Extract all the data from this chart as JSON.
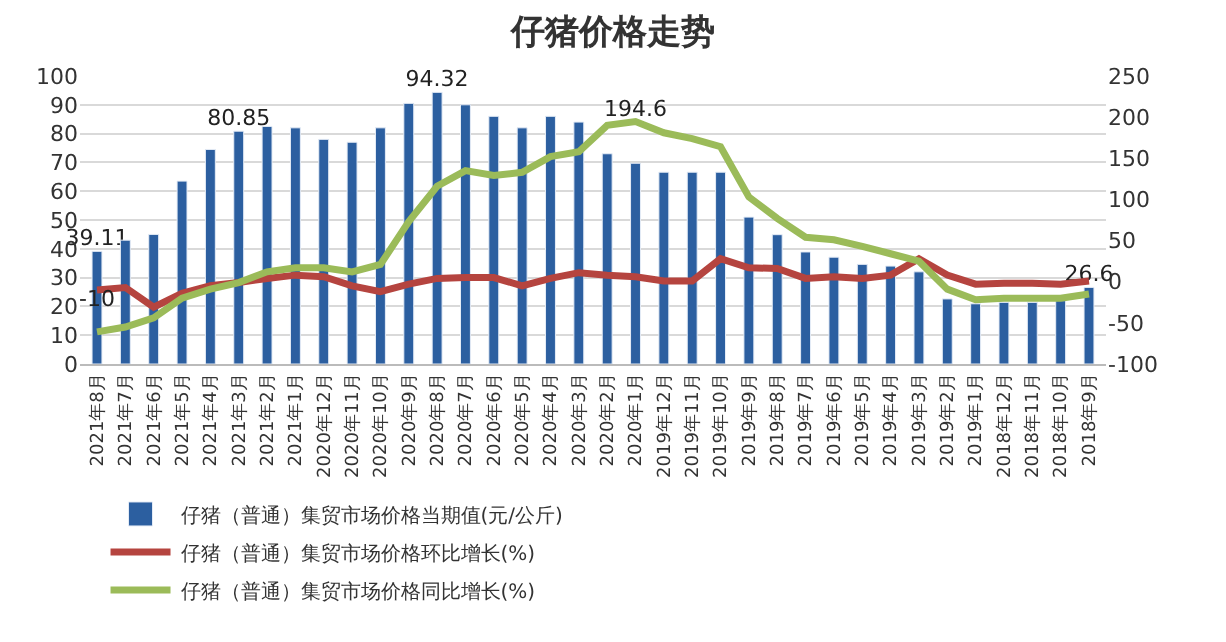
{
  "chart_data": {
    "type": "bar",
    "title": "仔猪价格走势",
    "categories": [
      "2021年8月",
      "2021年7月",
      "2021年6月",
      "2021年5月",
      "2021年4月",
      "2021年3月",
      "2021年2月",
      "2021年1月",
      "2020年12月",
      "2020年11月",
      "2020年10月",
      "2020年9月",
      "2020年8月",
      "2020年7月",
      "2020年6月",
      "2020年5月",
      "2020年4月",
      "2020年3月",
      "2020年2月",
      "2020年1月",
      "2019年12月",
      "2019年11月",
      "2019年10月",
      "2019年9月",
      "2019年8月",
      "2019年7月",
      "2019年6月",
      "2019年5月",
      "2019年4月",
      "2019年3月",
      "2019年2月",
      "2019年1月",
      "2018年12月",
      "2018年11月",
      "2018年10月",
      "2018年9月"
    ],
    "series": [
      {
        "name": "仔猪（普通）集贸市场价格当期值(元/公斤)",
        "color": "#2c5fa0",
        "values": [
          39.11,
          43,
          45,
          63.5,
          74.5,
          80.85,
          82.5,
          82,
          78,
          77,
          82,
          90.5,
          94.32,
          90,
          86,
          82,
          86,
          84,
          73,
          69.7,
          66.6,
          66.6,
          66.6,
          51,
          44.9,
          38.9,
          37.1,
          34.6,
          34,
          32,
          22.6,
          20.9,
          21.4,
          21.4,
          22,
          26.6
        ],
        "value_labels": [
          "39.11",
          null,
          null,
          null,
          null,
          "80.85",
          null,
          null,
          null,
          null,
          null,
          null,
          "94.32",
          null,
          null,
          null,
          null,
          null,
          null,
          null,
          null,
          null,
          null,
          null,
          null,
          null,
          null,
          null,
          null,
          null,
          null,
          null,
          null,
          null,
          null,
          "26.6"
        ]
      },
      {
        "name": "仔猪（普通）集贸市场价格环比增长(%)",
        "type": "line",
        "axis": "y2",
        "color": "#b5443f",
        "values": [
          -10,
          -7,
          -31,
          -14,
          -5,
          -1,
          4,
          8,
          6,
          -5,
          -12,
          -3,
          4,
          5,
          5,
          -5,
          4,
          11,
          8,
          6,
          1,
          1,
          28,
          17,
          16,
          4,
          6,
          4,
          8,
          28,
          8,
          -3,
          -2,
          -2,
          -3,
          1
        ],
        "value_labels": [
          "-10",
          null,
          null,
          null,
          null,
          null,
          null,
          null,
          null,
          null,
          null,
          null,
          null,
          null,
          null,
          null,
          null,
          null,
          null,
          null,
          null,
          null,
          null,
          null,
          null,
          null,
          null,
          null,
          null,
          null,
          null,
          null,
          null,
          null,
          null,
          null
        ]
      },
      {
        "name": "仔猪（普通）集贸市场价格同比增长(%)",
        "type": "line",
        "axis": "y2",
        "color": "#9bbb59",
        "values": [
          -61,
          -55,
          -44,
          -20,
          -9,
          -1,
          12,
          17,
          17,
          12,
          21,
          73,
          116,
          135,
          129,
          133,
          152,
          158,
          190,
          194.6,
          181,
          174,
          164,
          103,
          77,
          54,
          51,
          43,
          34,
          25,
          -9,
          -22,
          -20,
          -20,
          -20,
          -15
        ],
        "value_labels": [
          null,
          null,
          null,
          null,
          null,
          null,
          null,
          null,
          null,
          null,
          null,
          null,
          null,
          null,
          null,
          null,
          null,
          null,
          null,
          "194.6",
          null,
          null,
          null,
          null,
          null,
          null,
          null,
          null,
          null,
          null,
          null,
          null,
          null,
          null,
          null,
          null
        ]
      }
    ],
    "ylim": [
      0,
      100
    ],
    "yticks": [
      0,
      10,
      20,
      30,
      40,
      50,
      60,
      70,
      80,
      90,
      100
    ],
    "y2lim": [
      -100,
      250
    ],
    "y2ticks": [
      -100,
      -50,
      0,
      50,
      100,
      150,
      200,
      250
    ],
    "grid": "y",
    "legend": "bottom",
    "line_style": "solid",
    "marker": "none"
  }
}
